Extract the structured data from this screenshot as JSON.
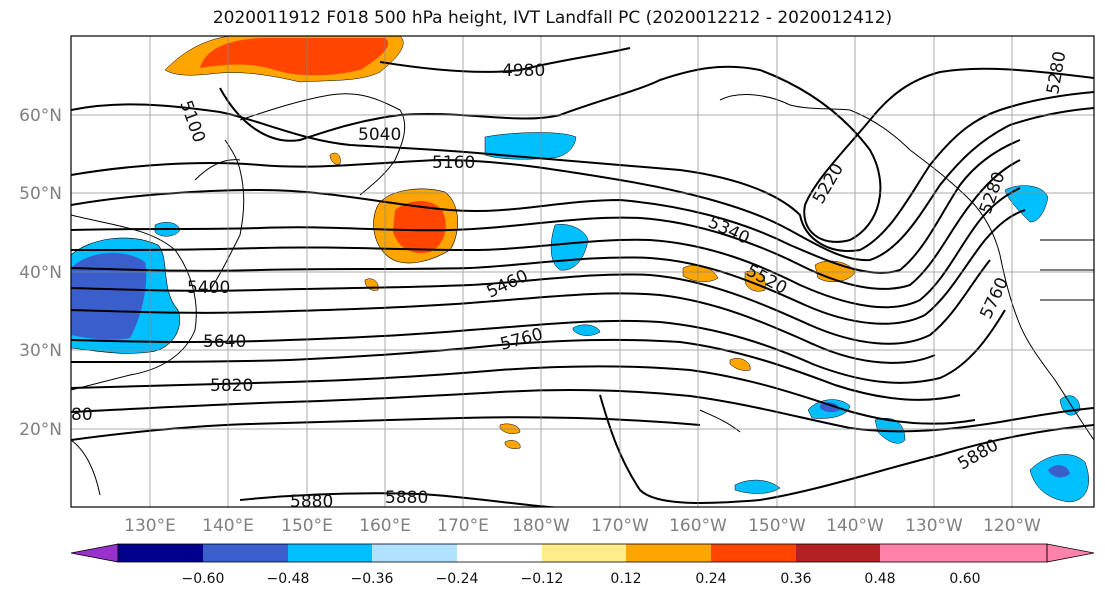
{
  "title": "2020011912 F018 500 hPa height, IVT Landfall PC (2020012212 - 2020012412)",
  "lon_labels": [
    "130°E",
    "140°E",
    "150°E",
    "160°E",
    "170°E",
    "180°W",
    "170°W",
    "160°W",
    "150°W",
    "140°W",
    "130°W",
    "120°W"
  ],
  "lat_labels": [
    "60°N",
    "50°N",
    "40°N",
    "30°N",
    "20°N"
  ],
  "contour_labels": [
    "4980",
    "5100",
    "5040",
    "5160",
    "5220",
    "5280",
    "5340",
    "5400",
    "5460",
    "5520",
    "5640",
    "5760",
    "5820",
    "5880",
    "5880",
    "5880",
    "5760",
    "5280",
    "80"
  ],
  "colorbar": {
    "ticks": [
      "−0.60",
      "−0.48",
      "−0.36",
      "−0.24",
      "−0.12",
      "0.12",
      "0.24",
      "0.36",
      "0.48",
      "0.60"
    ],
    "colors": [
      "#9932cc",
      "#00008b",
      "#3a5fcd",
      "#00bfff",
      "#b0e2ff",
      "#ffffff",
      "#ffec8b",
      "#ffa500",
      "#ff4500",
      "#b22222",
      "#ff82ab"
    ]
  }
}
